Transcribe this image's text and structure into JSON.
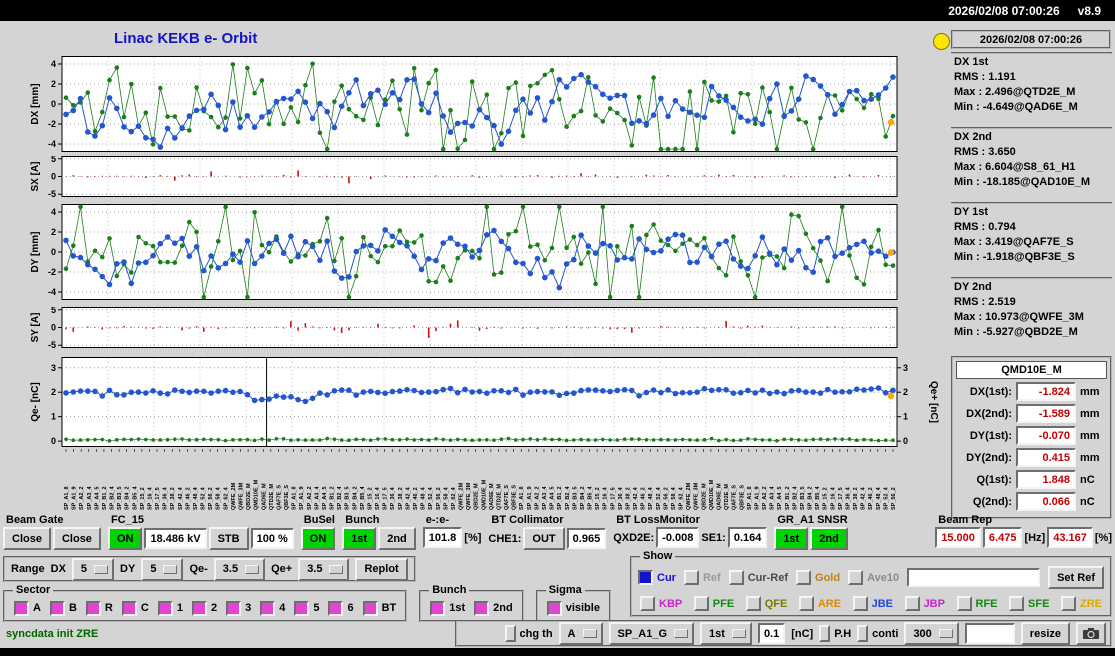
{
  "titlebar": {
    "datetime": "2026/02/08 07:00:26",
    "version": "v8.9"
  },
  "title": "Linac KEKB e- Orbit",
  "right": {
    "timestamp": "2026/02/08 07:00:26",
    "stats": [
      {
        "name": "DX 1st",
        "rows": [
          "RMS : 1.191",
          "Max : 2.496@QTD2E_M",
          "Min : -4.649@QAD6E_M"
        ]
      },
      {
        "name": "DX 2nd",
        "rows": [
          "RMS : 3.650",
          "Max : 6.604@S8_61_H1",
          "Min : -18.185@QAD10E_M"
        ]
      },
      {
        "name": "DY 1st",
        "rows": [
          "RMS : 0.794",
          "Max : 3.419@QAF7E_S",
          "Min : -1.918@QBF3E_S"
        ]
      },
      {
        "name": "DY 2nd",
        "rows": [
          "RMS : 2.519",
          "Max : 10.973@QWFE_3M",
          "Min : -5.927@QBD2E_M"
        ]
      }
    ],
    "qmd": {
      "title": "QMD10E_M",
      "rows": [
        {
          "label": "DX(1st):",
          "value": "-1.824",
          "unit": "mm"
        },
        {
          "label": "DX(2nd):",
          "value": "-1.589",
          "unit": "mm"
        },
        {
          "label": "DY(1st):",
          "value": "-0.070",
          "unit": "mm"
        },
        {
          "label": "DY(2nd):",
          "value": "0.415",
          "unit": "mm"
        },
        {
          "label": "Q(1st):",
          "value": "1.848",
          "unit": "nC"
        },
        {
          "label": "Q(2nd):",
          "value": "0.066",
          "unit": "nC"
        }
      ]
    }
  },
  "plots": [
    {
      "id": "dx",
      "h": 96,
      "ylabel": "DX [mm]",
      "ymin": -4.7,
      "ymax": 4.7,
      "ticks": [
        4,
        2,
        0,
        -2,
        -4
      ],
      "series": [
        {
          "color": "#1c7d1c",
          "r": 2.3,
          "lw": 0.8,
          "amp": 2.1,
          "spike": 0.13,
          "spikeAmp": 5,
          "seed": 11
        },
        {
          "color": "#2456cf",
          "r": 2.8,
          "lw": 1,
          "amp": 1.25,
          "ar": true,
          "seed": 22
        }
      ],
      "end": {
        "v": -1.824,
        "color": "#ffa500"
      }
    },
    {
      "id": "sx",
      "h": 41,
      "ylabel": "SX [A]",
      "ymin": -5.5,
      "ymax": 5.5,
      "ticks": [
        5,
        0,
        -5
      ],
      "bars": {
        "color": "#cc1111",
        "seed": 33,
        "burst": [
          0.3,
          0.38
        ]
      }
    },
    {
      "id": "dy",
      "h": 96,
      "ylabel": "DY [mm]",
      "ymin": -4.7,
      "ymax": 4.7,
      "ticks": [
        4,
        2,
        0,
        -2,
        -4
      ],
      "series": [
        {
          "color": "#1c7d1c",
          "r": 2.3,
          "lw": 0.8,
          "amp": 2.0,
          "spike": 0.12,
          "spikeAmp": 5,
          "seed": 44
        },
        {
          "color": "#2456cf",
          "r": 2.8,
          "lw": 1,
          "amp": 1.1,
          "ar": true,
          "seed": 55
        }
      ],
      "end": {
        "v": -0.07,
        "color": "#ffa500"
      }
    },
    {
      "id": "sy",
      "h": 41,
      "ylabel": "SY [A]",
      "ymin": -5.5,
      "ymax": 5.5,
      "ticks": [
        5,
        0,
        -5
      ],
      "bars": {
        "color": "#cc1111",
        "seed": 66,
        "burst": [
          0.28,
          0.48
        ]
      }
    },
    {
      "id": "q",
      "h": 90,
      "ylabel": "Qe- [nC]",
      "ylabel_right": "Qe+ [nC]",
      "ymin": -0.2,
      "ymax": 3.4,
      "ticks": [
        3,
        2,
        1,
        0
      ],
      "series": [
        {
          "color": "#2456cf",
          "r": 2.8,
          "lw": 1,
          "amp": 0.07,
          "base": 2.02,
          "dip": [
            0.22,
            0.3
          ],
          "dipAmt": 0.25,
          "seed": 77
        },
        {
          "color": "#1c7d1c",
          "r": 1.8,
          "lw": 0.7,
          "amp": 0.02,
          "base": 0.06,
          "seed": 88
        }
      ],
      "vline": 0.245,
      "end": {
        "v": 1.848,
        "color": "#ffa500"
      }
    }
  ],
  "xlabels": {
    "count": 110,
    "names": [
      "SP_A1_8",
      "SP_A1_9",
      "SP_A2_2",
      "SP_A3_4",
      "SP_A4_5",
      "SP_B1_2",
      "SP_B2_4",
      "SP_B3_5",
      "SP_B4_2",
      "SP_B5_4",
      "SP_15_2",
      "SP_16_4",
      "SP_17_5",
      "SP_36_4",
      "SP_38_2",
      "SP_42_4",
      "SP_46_2",
      "SP_48_4",
      "SP_52_4",
      "SP_56_2",
      "SP_58_4",
      "SP_62_4",
      "QWFE_2M",
      "QWFE_3M",
      "QBD2E_M",
      "QMD10E_M",
      "QAD6E_M",
      "QTD2E_M",
      "QAF7E_S",
      "QBF3E_S"
    ]
  },
  "controls": {
    "beam_gate": {
      "label": "Beam Gate",
      "close1": "Close",
      "close2": "Close"
    },
    "fc15": {
      "label": "FC_15",
      "on": "ON",
      "kv": "18.486 kV",
      "stb": "STB",
      "pct": "100 %"
    },
    "busel": {
      "label": "BuSel",
      "on": "ON"
    },
    "bunch": {
      "label": "Bunch",
      "b1": "1st",
      "b2": "2nd"
    },
    "ee": {
      "label": "e-:e-",
      "value": "101.8",
      "unit": "[%]"
    },
    "bt_coll": {
      "label": "BT Collimator",
      "che1": "CHE1:",
      "out": "OUT",
      "value": "0.965"
    },
    "bt_loss": {
      "label": "BT LossMonitor",
      "l1": "QXD2E:",
      "v1": "-0.008",
      "l2": "SE1:",
      "v2": "0.164"
    },
    "gr_snsr": {
      "label": "GR_A1 SNSR",
      "b1": "1st",
      "b2": "2nd"
    },
    "beam_rep": {
      "label": "Beam Rep",
      "v1": "15.000",
      "v2": "6.475",
      "hz": "[Hz]",
      "v3": "43.167",
      "pct": "[%]"
    },
    "range": {
      "label": "Range",
      "dx_l": "DX",
      "dx": "5",
      "dy_l": "DY",
      "dy": "5",
      "qem_l": "Qe-",
      "qem": "3.5",
      "qep_l": "Qe+",
      "qep": "3.5",
      "replot": "Replot"
    },
    "sector": {
      "label": "Sector",
      "items": [
        "A",
        "B",
        "R",
        "C",
        "1",
        "2",
        "3",
        "4",
        "5",
        "6",
        "BT"
      ]
    },
    "bunch2": {
      "label": "Bunch",
      "b1": "1st",
      "b2": "2nd"
    },
    "sigma": {
      "label": "Sigma",
      "visible": "visible"
    },
    "show": {
      "label": "Show",
      "row1": [
        {
          "t": "Cur",
          "c": "#1414c8"
        },
        {
          "t": "Ref",
          "c": "#9a9a9a"
        },
        {
          "t": "Cur-Ref",
          "c": "#4a4a4a"
        },
        {
          "t": "Gold",
          "c": "#b8860b"
        },
        {
          "t": "Ave10",
          "c": "#8a8a8a"
        }
      ],
      "set_ref": "Set Ref",
      "row2": [
        {
          "t": "KBP",
          "c": "#cc22cc"
        },
        {
          "t": "PFE",
          "c": "#118811"
        },
        {
          "t": "QFE",
          "c": "#7a7a00"
        },
        {
          "t": "ARE",
          "c": "#dd8800"
        },
        {
          "t": "JBE",
          "c": "#2244dd"
        },
        {
          "t": "JBP",
          "c": "#cc22cc"
        },
        {
          "t": "RFE",
          "c": "#118811"
        },
        {
          "t": "SFE",
          "c": "#118811"
        },
        {
          "t": "ZRE",
          "c": "#ddaa00"
        }
      ]
    },
    "statusline": "syncdata init ZRE",
    "bottom": {
      "chg_th": "chg th",
      "sel1": "A",
      "sel2": "SP_A1_G",
      "sel3": "1st",
      "thr": "0.1",
      "nc": "[nC]",
      "ph": "P.H",
      "conti": "conti",
      "sel4": "300",
      "blank": "",
      "resize": "resize"
    }
  }
}
